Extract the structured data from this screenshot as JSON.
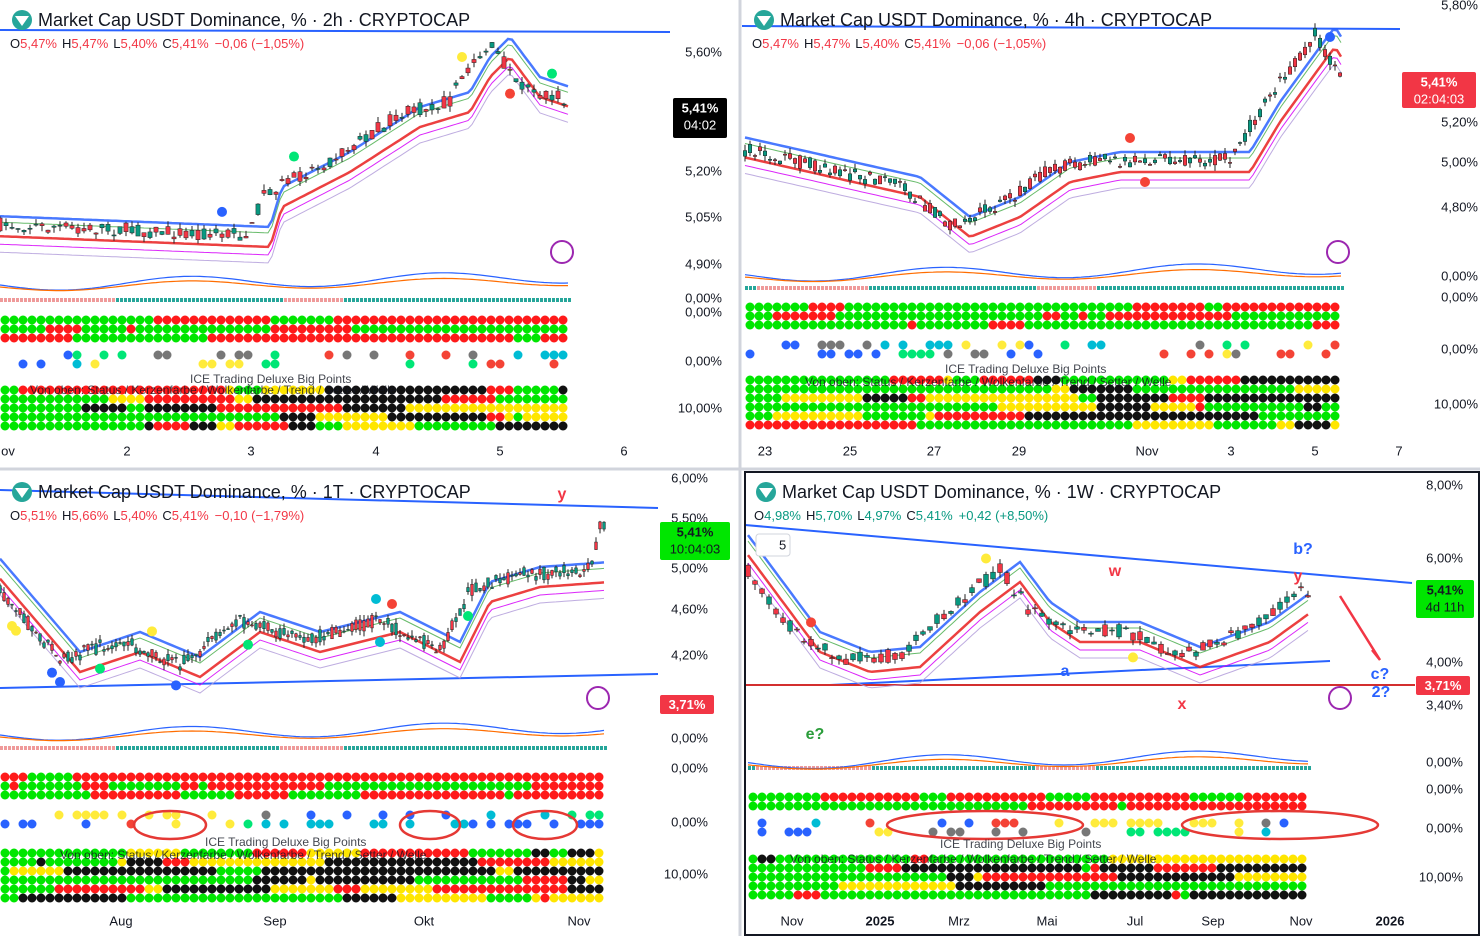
{
  "panels": [
    {
      "title": "Market Cap USDT Dominance, % · 2h · CRYPTOCAP",
      "ohlc": [
        {
          "key": "O",
          "value": "5,47%"
        },
        {
          "key": "H",
          "value": "5,47%"
        },
        {
          "key": "L",
          "value": "5,40%"
        },
        {
          "key": "C",
          "value": "5,41%"
        }
      ],
      "change": "−0,06 (−1,05%)",
      "price_axis": [
        "5,60%",
        "5,20%",
        "5,05%",
        "4,90%",
        "0,00%",
        "0,00%",
        "0,00%",
        "10,00%"
      ],
      "price_tags": [
        {
          "value": "5,41%",
          "timer": "04:02"
        }
      ],
      "time_axis": [
        "ov",
        "2",
        "3",
        "4",
        "5",
        "6"
      ],
      "indicator_labels": [
        "ICE Trading Deluxe Big Points",
        "Von oben: Status / Kerzenfarbe / Wolkenfarbe / Trend / Setter / Welle"
      ],
      "annotations": []
    },
    {
      "title": "Market Cap USDT Dominance, % · 4h · CRYPTOCAP",
      "ohlc": [
        {
          "key": "O",
          "value": "5,47%"
        },
        {
          "key": "H",
          "value": "5,47%"
        },
        {
          "key": "L",
          "value": "5,40%"
        },
        {
          "key": "C",
          "value": "5,41%"
        }
      ],
      "change": "−0,06 (−1,05%)",
      "price_axis": [
        "5,80%",
        "5,20%",
        "5,00%",
        "4,80%",
        "0,00%",
        "0,00%",
        "0,00%",
        "10,00%"
      ],
      "price_tags": [
        {
          "value": "5,41%",
          "timer": "02:04:03"
        }
      ],
      "time_axis": [
        "23",
        "25",
        "27",
        "29",
        "Nov",
        "3",
        "5",
        "7"
      ],
      "indicator_labels": [
        "ICE Trading Deluxe Big Points",
        "Von oben: Status / Kerzenfarbe / Wolkenfarbe / Trend / Setter / Welle"
      ],
      "annotations": []
    },
    {
      "title": "Market Cap USDT Dominance, % · 1T · CRYPTOCAP",
      "ohlc": [
        {
          "key": "O",
          "value": "5,51%"
        },
        {
          "key": "H",
          "value": "5,66%"
        },
        {
          "key": "L",
          "value": "5,40%"
        },
        {
          "key": "C",
          "value": "5,41%"
        }
      ],
      "change": "−0,10 (−1,79%)",
      "price_axis": [
        "6,00%",
        "5,50%",
        "5,00%",
        "4,60%",
        "4,20%",
        "0,00%",
        "0,00%",
        "0,00%",
        "10,00%"
      ],
      "price_tags": [
        {
          "value": "5,41%",
          "timer": "10:04:03"
        },
        {
          "value": "3,71%"
        }
      ],
      "time_axis": [
        "Aug",
        "Sep",
        "Okt",
        "Nov"
      ],
      "indicator_labels": [
        "ICE Trading Deluxe Big Points",
        "Von oben: Status / Kerzenfarbe / Wolkenfarbe / Trend / Setter / Welle"
      ],
      "annotations": [
        "y"
      ]
    },
    {
      "title": "Market Cap USDT Dominance, % · 1W · CRYPTOCAP",
      "ohlc": [
        {
          "key": "O",
          "value": "4,98%"
        },
        {
          "key": "H",
          "value": "5,70%"
        },
        {
          "key": "L",
          "value": "4,97%"
        },
        {
          "key": "C",
          "value": "5,41%"
        }
      ],
      "change": "+0,42 (+8,50%)",
      "interval": "5",
      "price_axis": [
        "8,00%",
        "6,00%",
        "4,00%",
        "3,40%",
        "0,00%",
        "0,00%",
        "0,00%",
        "10,00%"
      ],
      "price_tags": [
        {
          "value": "5,41%",
          "timer": "4d 11h"
        },
        {
          "value": "3,71%"
        }
      ],
      "time_axis": [
        "Nov",
        "2025",
        "Mrz",
        "Mai",
        "Jul",
        "Sep",
        "Nov",
        "2026"
      ],
      "indicator_labels": [
        "ICE Trading Deluxe Big Points",
        "Von oben: Status / Kerzenfarbe / Wolkenfarbe / Trend / Setter / Welle"
      ],
      "annotations": [
        "e?",
        "a",
        "x",
        "w",
        "b?",
        "y",
        "c?",
        "2?"
      ]
    }
  ]
}
